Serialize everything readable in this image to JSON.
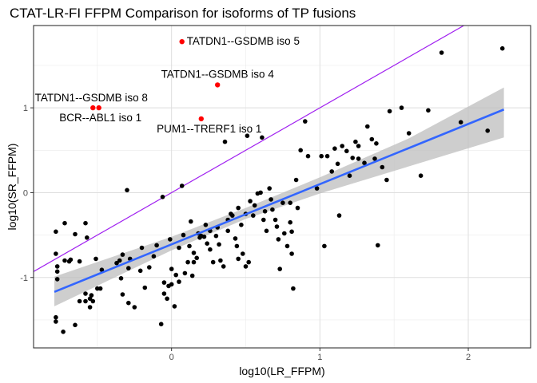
{
  "chart_data": {
    "type": "scatter",
    "title": "CTAT-LR-FI FFPM Comparison for isoforms of TP fusions",
    "xlabel": "log10(LR_FFPM)",
    "ylabel": "log10(SR_FFPM)",
    "xlim": [
      -0.93,
      2.42
    ],
    "ylim": [
      -1.83,
      1.97
    ],
    "x_ticks": [
      0,
      1,
      2
    ],
    "y_ticks": [
      -1,
      0,
      1
    ],
    "grid": true,
    "colors": {
      "points": "#000000",
      "highlight": "#ff0000",
      "identity_line": "#a020f0",
      "fit_line": "#3366ff",
      "ribbon": "#bdbdbd"
    },
    "identity_line": {
      "slope": 1,
      "intercept": 0
    },
    "fit_line": {
      "x0": -0.79,
      "y0": -1.17,
      "x1": 2.24,
      "y1": 0.98
    },
    "ribbon": [
      {
        "x": -0.79,
        "lo": -1.34,
        "hi": -0.99
      },
      {
        "x": 0.0,
        "lo": -0.68,
        "hi": -0.52
      },
      {
        "x": 0.5,
        "lo": -0.31,
        "hi": -0.18
      },
      {
        "x": 1.0,
        "lo": -0.01,
        "hi": 0.18
      },
      {
        "x": 1.6,
        "lo": 0.31,
        "hi": 0.64
      },
      {
        "x": 2.24,
        "lo": 0.65,
        "hi": 1.24
      }
    ],
    "highlighted": [
      {
        "label": "TATDN1--GSDMB iso 5",
        "x": 0.07,
        "y": 1.78
      },
      {
        "label": "TATDN1--GSDMB iso 4",
        "x": 0.31,
        "y": 1.27
      },
      {
        "label": "TATDN1--GSDMB iso 8",
        "x": -0.53,
        "y": 1.0
      },
      {
        "label": "BCR--ABL1 iso 1",
        "x": -0.49,
        "y": 1.0
      },
      {
        "label": "PUM1--TRERF1 iso 1",
        "x": 0.2,
        "y": 0.87
      }
    ],
    "points": [
      [
        -0.78,
        -1.52
      ],
      [
        -0.78,
        -1.47
      ],
      [
        -0.73,
        -1.64
      ],
      [
        -0.77,
        -1.02
      ],
      [
        -0.77,
        -0.93
      ],
      [
        -0.77,
        -0.87
      ],
      [
        -0.78,
        -0.72
      ],
      [
        -0.78,
        -0.46
      ],
      [
        -0.72,
        -0.36
      ],
      [
        -0.72,
        -0.8
      ],
      [
        -0.69,
        -0.81
      ],
      [
        -0.68,
        -0.79
      ],
      [
        -0.65,
        -0.49
      ],
      [
        -0.65,
        -1.56
      ],
      [
        -0.62,
        -1.28
      ],
      [
        -0.62,
        -0.81
      ],
      [
        -0.58,
        -0.36
      ],
      [
        -0.57,
        -0.53
      ],
      [
        -0.58,
        -1.19
      ],
      [
        -0.58,
        -1.28
      ],
      [
        -0.55,
        -1.25
      ],
      [
        -0.55,
        -1.35
      ],
      [
        -0.54,
        -1.21
      ],
      [
        -0.53,
        -1.28
      ],
      [
        -0.51,
        -0.78
      ],
      [
        -0.5,
        -1.13
      ],
      [
        -0.48,
        -1.13
      ],
      [
        -0.47,
        -0.91
      ],
      [
        -0.37,
        -0.83
      ],
      [
        -0.35,
        -0.8
      ],
      [
        -0.34,
        -1.01
      ],
      [
        -0.33,
        -1.2
      ],
      [
        -0.33,
        -0.73
      ],
      [
        -0.3,
        0.03
      ],
      [
        -0.29,
        -0.89
      ],
      [
        -0.29,
        -1.3
      ],
      [
        -0.28,
        -0.78
      ],
      [
        -0.25,
        -1.35
      ],
      [
        -0.21,
        -0.92
      ],
      [
        -0.18,
        -1.12
      ],
      [
        -0.15,
        -0.88
      ],
      [
        -0.12,
        -0.75
      ],
      [
        -0.1,
        -0.62
      ],
      [
        -0.07,
        -1.55
      ],
      [
        -0.06,
        -0.05
      ],
      [
        -0.05,
        -1.06
      ],
      [
        -0.05,
        -1.19
      ],
      [
        -0.03,
        -1.25
      ],
      [
        -0.02,
        -1.1
      ],
      [
        -0.01,
        -0.55
      ],
      [
        0.0,
        -0.9
      ],
      [
        0.0,
        -1.08
      ],
      [
        0.03,
        -0.97
      ],
      [
        0.02,
        -1.34
      ],
      [
        0.05,
        -0.65
      ],
      [
        0.05,
        -1.05
      ],
      [
        0.07,
        0.08
      ],
      [
        0.08,
        -0.5
      ],
      [
        0.09,
        -0.95
      ],
      [
        0.11,
        -0.82
      ],
      [
        0.12,
        -0.63
      ],
      [
        0.13,
        -0.34
      ],
      [
        0.14,
        -0.98
      ],
      [
        0.15,
        -0.82
      ],
      [
        0.15,
        -0.71
      ],
      [
        0.17,
        -0.77
      ],
      [
        0.19,
        -0.53
      ],
      [
        0.2,
        -0.51
      ],
      [
        0.22,
        -0.52
      ],
      [
        0.23,
        -0.38
      ],
      [
        0.24,
        -0.6
      ],
      [
        0.26,
        -0.45
      ],
      [
        0.26,
        -0.67
      ],
      [
        0.28,
        -0.82
      ],
      [
        0.3,
        -0.51
      ],
      [
        0.31,
        -0.41
      ],
      [
        0.32,
        -0.61
      ],
      [
        0.33,
        -0.8
      ],
      [
        0.35,
        -0.87
      ],
      [
        0.36,
        0.6
      ],
      [
        0.38,
        -0.32
      ],
      [
        0.38,
        -0.45
      ],
      [
        0.4,
        -0.25
      ],
      [
        0.41,
        -0.27
      ],
      [
        0.43,
        -0.54
      ],
      [
        0.44,
        -0.63
      ],
      [
        0.45,
        -0.78
      ],
      [
        0.45,
        -0.18
      ],
      [
        0.47,
        -0.38
      ],
      [
        0.48,
        -0.72
      ],
      [
        0.5,
        -0.87
      ],
      [
        0.5,
        -0.25
      ],
      [
        0.51,
        0.67
      ],
      [
        0.52,
        -0.82
      ],
      [
        0.53,
        -0.1
      ],
      [
        0.55,
        -0.27
      ],
      [
        0.56,
        -0.15
      ],
      [
        0.58,
        -0.01
      ],
      [
        0.6,
        0.0
      ],
      [
        0.61,
        0.65
      ],
      [
        0.62,
        -0.32
      ],
      [
        0.63,
        -0.22
      ],
      [
        0.64,
        -0.45
      ],
      [
        0.66,
        0.05
      ],
      [
        0.67,
        -0.08
      ],
      [
        0.68,
        -0.2
      ],
      [
        0.7,
        -0.32
      ],
      [
        0.71,
        -0.4
      ],
      [
        0.72,
        -0.55
      ],
      [
        0.73,
        -0.9
      ],
      [
        0.75,
        -0.12
      ],
      [
        0.76,
        -0.48
      ],
      [
        0.78,
        -0.63
      ],
      [
        0.8,
        -0.12
      ],
      [
        0.8,
        -0.35
      ],
      [
        0.81,
        -0.46
      ],
      [
        0.81,
        -0.72
      ],
      [
        0.82,
        -1.13
      ],
      [
        0.84,
        0.15
      ],
      [
        0.85,
        -0.18
      ],
      [
        0.87,
        0.5
      ],
      [
        0.9,
        0.84
      ],
      [
        0.92,
        0.43
      ],
      [
        1.01,
        0.43
      ],
      [
        1.03,
        -0.63
      ],
      [
        1.08,
        0.25
      ],
      [
        1.1,
        0.52
      ],
      [
        1.12,
        0.34
      ],
      [
        1.18,
        0.49
      ],
      [
        1.2,
        0.2
      ],
      [
        1.22,
        0.41
      ],
      [
        1.24,
        0.6
      ],
      [
        1.26,
        0.55
      ],
      [
        1.26,
        0.4
      ],
      [
        1.3,
        0.35
      ],
      [
        1.32,
        0.78
      ],
      [
        1.35,
        0.63
      ],
      [
        1.38,
        0.58
      ],
      [
        1.42,
        0.3
      ],
      [
        1.45,
        0.15
      ],
      [
        1.47,
        0.96
      ],
      [
        1.55,
        1.0
      ],
      [
        1.6,
        0.7
      ],
      [
        1.73,
        0.97
      ],
      [
        1.82,
        1.65
      ],
      [
        1.95,
        0.83
      ],
      [
        2.13,
        0.73
      ],
      [
        2.23,
        1.7
      ],
      [
        1.39,
        -0.62
      ],
      [
        1.13,
        -0.27
      ],
      [
        1.15,
        0.55
      ],
      [
        1.37,
        0.4
      ],
      [
        1.68,
        0.2
      ],
      [
        1.05,
        0.43
      ],
      [
        0.98,
        0.05
      ],
      [
        0.18,
        -0.48
      ],
      [
        -0.2,
        -0.65
      ]
    ]
  }
}
